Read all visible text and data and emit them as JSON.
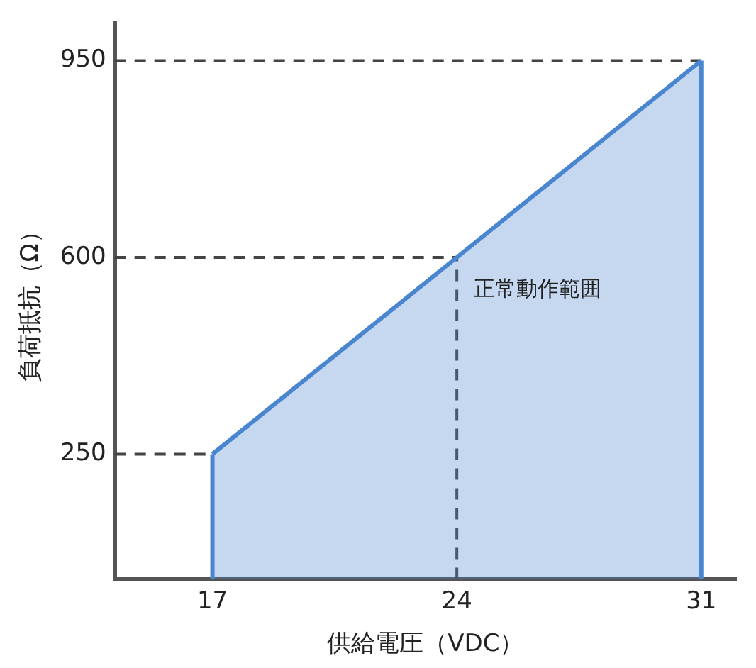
{
  "chart_data": {
    "type": "area",
    "xlabel": "供給電圧（VDC）",
    "ylabel": "負荷抵抗（Ω）",
    "x": [
      17,
      24,
      31
    ],
    "series": [
      {
        "color": "#4a86d0",
        "values": [
          250,
          600,
          950
        ]
      }
    ],
    "xlim": [
      14.2,
      32
    ],
    "xticks": [
      17,
      24,
      31
    ],
    "ylim": [
      28,
      1017
    ],
    "yticks": [
      250,
      600,
      950
    ],
    "ref_lines": [
      {
        "axis": "y",
        "value": 250
      },
      {
        "axis": "y",
        "value": 600
      },
      {
        "axis": "y",
        "value": 950
      },
      {
        "axis": "x",
        "value": 24
      },
      {
        "axis": "x",
        "value": 17,
        "color": "#4a86d0",
        "line_style": "solid"
      },
      {
        "axis": "x",
        "value": 31,
        "color": "#4a86d0",
        "line_style": "solid"
      }
    ],
    "line_style": "solid",
    "grid": false,
    "legend": false,
    "annotations": [
      "正常動作範囲"
    ]
  }
}
